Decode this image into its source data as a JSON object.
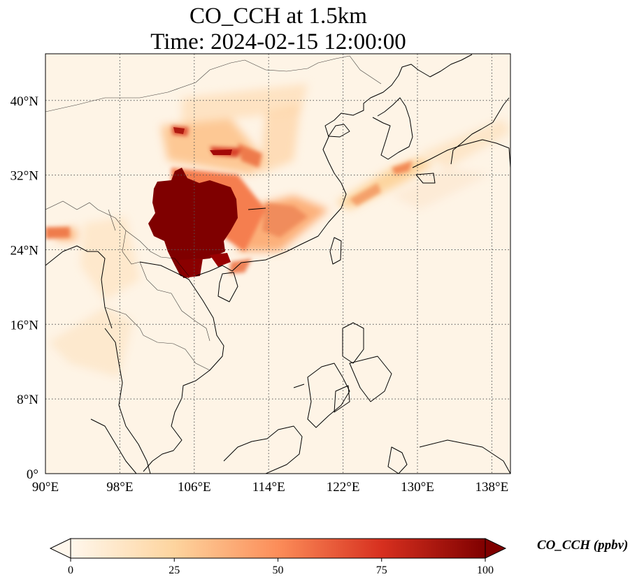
{
  "title_line1": "CO_CCH at 1.5km",
  "title_line2": "Time: 2024-02-15 12:00:00",
  "map": {
    "lon_range": [
      90,
      140
    ],
    "lat_range": [
      0,
      45
    ],
    "lon_ticks": [
      {
        "value": 90,
        "label": "90°E"
      },
      {
        "value": 98,
        "label": "98°E"
      },
      {
        "value": 106,
        "label": "106°E"
      },
      {
        "value": 114,
        "label": "114°E"
      },
      {
        "value": 122,
        "label": "122°E"
      },
      {
        "value": 130,
        "label": "130°E"
      },
      {
        "value": 138,
        "label": "138°E"
      }
    ],
    "lat_ticks": [
      {
        "value": 0,
        "label": "0°"
      },
      {
        "value": 8,
        "label": "8°N"
      },
      {
        "value": 16,
        "label": "16°N"
      },
      {
        "value": 24,
        "label": "24°N"
      },
      {
        "value": 32,
        "label": "32°N"
      },
      {
        "value": 40,
        "label": "40°N"
      }
    ],
    "gridlines": "dotted"
  },
  "colorbar": {
    "label": "CO_CCH (ppbv)",
    "range": [
      0,
      100
    ],
    "extend": "both",
    "colormap": "OrRd",
    "ticks": [
      {
        "value": 0,
        "label": "0"
      },
      {
        "value": 25,
        "label": "25"
      },
      {
        "value": 50,
        "label": "50"
      },
      {
        "value": 75,
        "label": "75"
      },
      {
        "value": 100,
        "label": "100"
      }
    ],
    "colors": [
      "#fff7ec",
      "#fdd49e",
      "#fc8d59",
      "#d7301f",
      "#7f0000"
    ]
  }
}
